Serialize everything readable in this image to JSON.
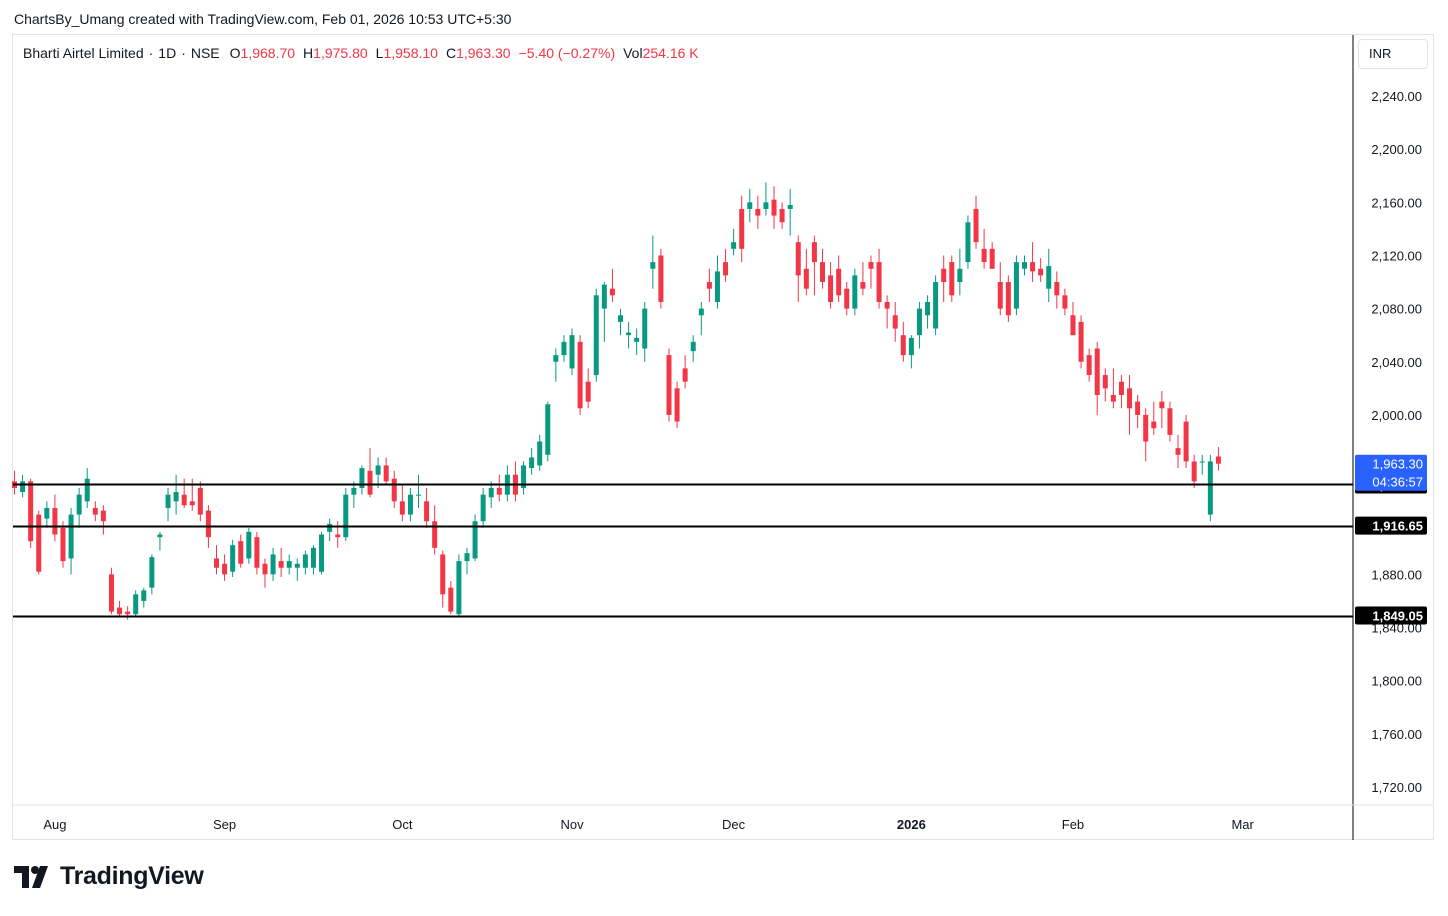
{
  "header": {
    "author_line": "ChartsBy_Umang created with TradingView.com, Feb 01, 2026 10:53 UTC+5:30"
  },
  "legend": {
    "symbol": "Bharti Airtel Limited",
    "interval": "1D",
    "exchange": "NSE",
    "open_label": "O",
    "open": "1,968.70",
    "high_label": "H",
    "high": "1,975.80",
    "low_label": "L",
    "low": "1,958.10",
    "close_label": "C",
    "close": "1,963.30",
    "change": "−5.40 (−0.27%)",
    "volume_label": "Vol",
    "volume": "254.16 K"
  },
  "price_axis": {
    "currency": "INR",
    "current_price_label": "1,963.30",
    "countdown": "04:36:57"
  },
  "branding": {
    "logo_text": "TradingView"
  },
  "colors": {
    "up": "#089981",
    "down": "#f23645",
    "level_line": "#000000",
    "current_tag": "#2962ff"
  },
  "chart_data": {
    "type": "candlestick",
    "symbol": "Bharti Airtel Limited",
    "interval": "1D",
    "ylim": [
      1700,
      2270
    ],
    "y_ticks": [
      1720,
      1760,
      1800,
      1840,
      1880,
      1920,
      1960,
      2000,
      2040,
      2080,
      2120,
      2160,
      2200,
      2240
    ],
    "y_tick_labels": [
      "1,720.00",
      "1,760.00",
      "1,800.00",
      "1,840.00",
      "1,880.00",
      "1,920.00",
      "1,960.00",
      "2,000.00",
      "2,040.00",
      "2,080.00",
      "2,120.00",
      "2,160.00",
      "2,200.00",
      "2,240.00"
    ],
    "x_ticks": [
      {
        "label": "Aug",
        "index": 5,
        "bold": false
      },
      {
        "label": "Sep",
        "index": 26,
        "bold": false
      },
      {
        "label": "Oct",
        "index": 48,
        "bold": false
      },
      {
        "label": "Nov",
        "index": 69,
        "bold": false
      },
      {
        "label": "Dec",
        "index": 89,
        "bold": false
      },
      {
        "label": "2026",
        "index": 111,
        "bold": true
      },
      {
        "label": "Feb",
        "index": 131,
        "bold": false
      },
      {
        "label": "Mar",
        "index": 152,
        "bold": false
      }
    ],
    "horizontal_levels": [
      {
        "value": 1947.65,
        "label": "1,947.65"
      },
      {
        "value": 1916.65,
        "label": "1,916.65"
      },
      {
        "value": 1849.05,
        "label": "1,849.05"
      }
    ],
    "candles": [
      [
        1950,
        1958,
        1940,
        1945
      ],
      [
        1942,
        1955,
        1938,
        1950
      ],
      [
        1950,
        1952,
        1900,
        1905
      ],
      [
        1925,
        1928,
        1880,
        1882
      ],
      [
        1922,
        1935,
        1915,
        1930
      ],
      [
        1930,
        1940,
        1905,
        1910
      ],
      [
        1915,
        1920,
        1885,
        1890
      ],
      [
        1892,
        1930,
        1880,
        1925
      ],
      [
        1925,
        1945,
        1915,
        1940
      ],
      [
        1935,
        1960,
        1930,
        1952
      ],
      [
        1930,
        1935,
        1920,
        1925
      ],
      [
        1928,
        1932,
        1910,
        1920
      ],
      [
        1880,
        1885,
        1850,
        1852
      ],
      [
        1855,
        1860,
        1848,
        1850
      ],
      [
        1852,
        1856,
        1846,
        1850
      ],
      [
        1850,
        1868,
        1848,
        1865
      ],
      [
        1860,
        1870,
        1855,
        1868
      ],
      [
        1870,
        1895,
        1865,
        1893
      ],
      [
        1908,
        1912,
        1898,
        1910
      ],
      [
        1930,
        1945,
        1920,
        1940
      ],
      [
        1935,
        1955,
        1925,
        1942
      ],
      [
        1940,
        1952,
        1930,
        1932
      ],
      [
        1935,
        1952,
        1928,
        1932
      ],
      [
        1945,
        1950,
        1920,
        1925
      ],
      [
        1928,
        1932,
        1900,
        1908
      ],
      [
        1892,
        1902,
        1880,
        1885
      ],
      [
        1888,
        1895,
        1875,
        1880
      ],
      [
        1882,
        1906,
        1878,
        1902
      ],
      [
        1905,
        1910,
        1885,
        1888
      ],
      [
        1892,
        1915,
        1888,
        1912
      ],
      [
        1908,
        1912,
        1880,
        1885
      ],
      [
        1888,
        1892,
        1870,
        1880
      ],
      [
        1880,
        1900,
        1875,
        1895
      ],
      [
        1890,
        1900,
        1878,
        1885
      ],
      [
        1885,
        1895,
        1880,
        1890
      ],
      [
        1885,
        1892,
        1875,
        1888
      ],
      [
        1885,
        1898,
        1880,
        1895
      ],
      [
        1885,
        1902,
        1880,
        1900
      ],
      [
        1882,
        1912,
        1880,
        1910
      ],
      [
        1912,
        1922,
        1905,
        1918
      ],
      [
        1910,
        1920,
        1900,
        1908
      ],
      [
        1908,
        1945,
        1905,
        1940
      ],
      [
        1940,
        1950,
        1930,
        1945
      ],
      [
        1945,
        1962,
        1940,
        1960
      ],
      [
        1958,
        1975,
        1938,
        1940
      ],
      [
        1955,
        1968,
        1945,
        1962
      ],
      [
        1962,
        1968,
        1948,
        1950
      ],
      [
        1952,
        1958,
        1930,
        1935
      ],
      [
        1935,
        1948,
        1920,
        1925
      ],
      [
        1925,
        1945,
        1920,
        1940
      ],
      [
        1940,
        1955,
        1930,
        1940
      ],
      [
        1935,
        1945,
        1915,
        1920
      ],
      [
        1920,
        1932,
        1895,
        1900
      ],
      [
        1895,
        1898,
        1855,
        1865
      ],
      [
        1870,
        1875,
        1850,
        1852
      ],
      [
        1850,
        1895,
        1848,
        1890
      ],
      [
        1890,
        1900,
        1880,
        1896
      ],
      [
        1892,
        1925,
        1890,
        1920
      ],
      [
        1920,
        1945,
        1915,
        1940
      ],
      [
        1938,
        1950,
        1930,
        1945
      ],
      [
        1945,
        1955,
        1935,
        1940
      ],
      [
        1940,
        1962,
        1935,
        1955
      ],
      [
        1955,
        1965,
        1935,
        1940
      ],
      [
        1945,
        1965,
        1940,
        1962
      ],
      [
        1960,
        1975,
        1955,
        1968
      ],
      [
        1962,
        1985,
        1958,
        1980
      ],
      [
        1970,
        2010,
        1965,
        2008
      ],
      [
        2040,
        2050,
        2025,
        2045
      ],
      [
        2045,
        2060,
        2040,
        2055
      ],
      [
        2035,
        2065,
        2030,
        2060
      ],
      [
        2055,
        2060,
        2000,
        2005
      ],
      [
        2025,
        2035,
        2005,
        2010
      ],
      [
        2030,
        2095,
        2025,
        2090
      ],
      [
        2080,
        2100,
        2055,
        2098
      ],
      [
        2095,
        2110,
        2085,
        2090
      ],
      [
        2070,
        2080,
        2060,
        2075
      ],
      [
        2060,
        2070,
        2050,
        2062
      ],
      [
        2055,
        2065,
        2045,
        2058
      ],
      [
        2050,
        2085,
        2040,
        2080
      ],
      [
        2110,
        2135,
        2095,
        2115
      ],
      [
        2120,
        2125,
        2080,
        2085
      ],
      [
        2045,
        2050,
        1995,
        2000
      ],
      [
        2020,
        2025,
        1990,
        1995
      ],
      [
        2035,
        2045,
        2020,
        2025
      ],
      [
        2048,
        2060,
        2040,
        2055
      ],
      [
        2075,
        2085,
        2060,
        2080
      ],
      [
        2100,
        2110,
        2085,
        2095
      ],
      [
        2085,
        2120,
        2080,
        2108
      ],
      [
        2115,
        2125,
        2100,
        2105
      ],
      [
        2125,
        2140,
        2120,
        2130
      ],
      [
        2155,
        2165,
        2115,
        2125
      ],
      [
        2155,
        2170,
        2145,
        2160
      ],
      [
        2155,
        2165,
        2140,
        2150
      ],
      [
        2155,
        2175,
        2150,
        2160
      ],
      [
        2162,
        2172,
        2140,
        2150
      ],
      [
        2155,
        2160,
        2140,
        2145
      ],
      [
        2155,
        2170,
        2135,
        2158
      ],
      [
        2130,
        2135,
        2085,
        2105
      ],
      [
        2110,
        2125,
        2090,
        2095
      ],
      [
        2130,
        2135,
        2090,
        2115
      ],
      [
        2115,
        2125,
        2095,
        2100
      ],
      [
        2105,
        2115,
        2080,
        2085
      ],
      [
        2110,
        2120,
        2085,
        2090
      ],
      [
        2095,
        2100,
        2075,
        2080
      ],
      [
        2080,
        2110,
        2075,
        2105
      ],
      [
        2100,
        2115,
        2090,
        2095
      ],
      [
        2115,
        2120,
        2095,
        2110
      ],
      [
        2115,
        2125,
        2080,
        2085
      ],
      [
        2085,
        2090,
        2065,
        2080
      ],
      [
        2075,
        2085,
        2055,
        2065
      ],
      [
        2060,
        2070,
        2040,
        2045
      ],
      [
        2045,
        2060,
        2035,
        2058
      ],
      [
        2060,
        2085,
        2050,
        2080
      ],
      [
        2075,
        2090,
        2065,
        2085
      ],
      [
        2065,
        2105,
        2060,
        2100
      ],
      [
        2110,
        2120,
        2085,
        2100
      ],
      [
        2115,
        2120,
        2085,
        2090
      ],
      [
        2100,
        2125,
        2090,
        2110
      ],
      [
        2115,
        2150,
        2110,
        2145
      ],
      [
        2155,
        2165,
        2125,
        2130
      ],
      [
        2125,
        2140,
        2110,
        2115
      ],
      [
        2125,
        2130,
        2110,
        2110
      ],
      [
        2100,
        2115,
        2075,
        2080
      ],
      [
        2100,
        2105,
        2070,
        2075
      ],
      [
        2080,
        2120,
        2075,
        2115
      ],
      [
        2110,
        2120,
        2105,
        2115
      ],
      [
        2115,
        2130,
        2100,
        2108
      ],
      [
        2110,
        2118,
        2100,
        2105
      ],
      [
        2095,
        2125,
        2085,
        2112
      ],
      [
        2100,
        2108,
        2080,
        2090
      ],
      [
        2090,
        2095,
        2075,
        2080
      ],
      [
        2075,
        2085,
        2060,
        2060
      ],
      [
        2070,
        2075,
        2035,
        2040
      ],
      [
        2045,
        2050,
        2025,
        2030
      ],
      [
        2050,
        2055,
        2000,
        2015
      ],
      [
        2030,
        2035,
        2010,
        2020
      ],
      [
        2015,
        2035,
        2005,
        2010
      ],
      [
        2025,
        2030,
        2005,
        2015
      ],
      [
        2020,
        2030,
        1985,
        2005
      ],
      [
        2010,
        2015,
        1990,
        2000
      ],
      [
        2000,
        2005,
        1965,
        1980
      ],
      [
        1995,
        2010,
        1985,
        1990
      ],
      [
        2010,
        2018,
        1990,
        2005
      ],
      [
        2005,
        2010,
        1980,
        1985
      ],
      [
        1975,
        1985,
        1960,
        1970
      ],
      [
        1995,
        2000,
        1960,
        1965
      ],
      [
        1965,
        1970,
        1945,
        1950
      ],
      [
        1965,
        1970,
        1955,
        1965
      ],
      [
        1925,
        1970,
        1920,
        1965
      ],
      [
        1968.7,
        1975.8,
        1958.1,
        1963.3
      ]
    ]
  }
}
